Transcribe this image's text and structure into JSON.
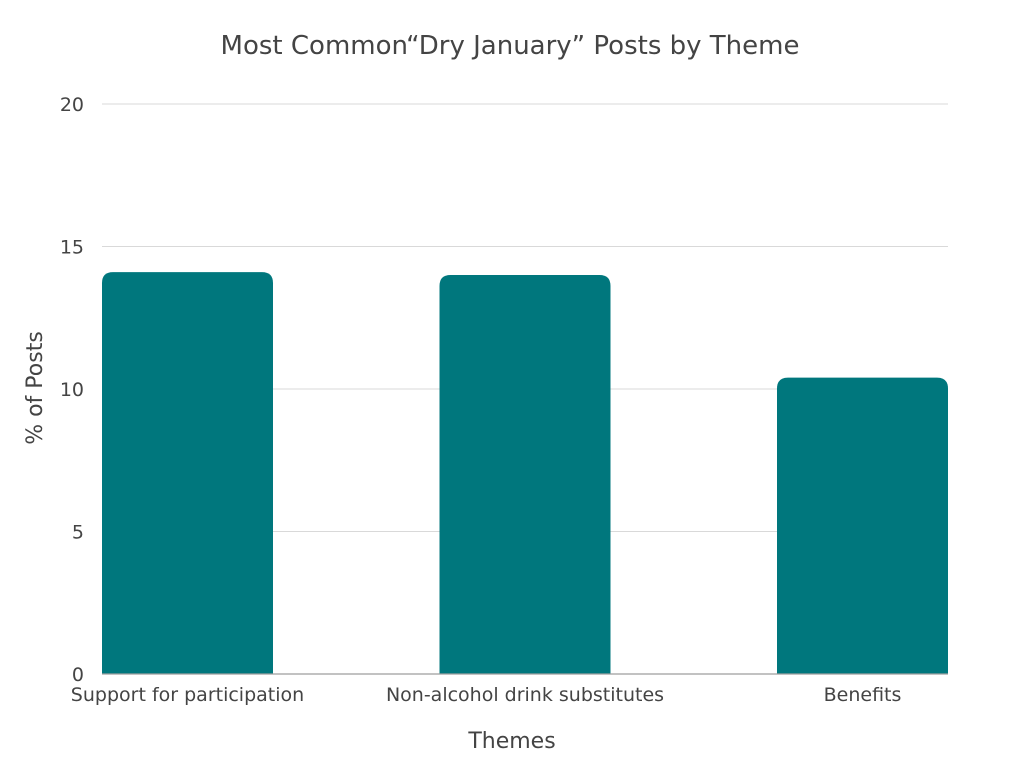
{
  "chart_data": {
    "type": "bar",
    "title": "Most Common“Dry January” Posts by Theme",
    "xlabel": "Themes",
    "ylabel": "%  of Posts",
    "categories": [
      "Support for participation",
      "Non-alcohol drink substitutes",
      "Benefits"
    ],
    "values": [
      14.1,
      14.0,
      10.4
    ],
    "ylim": [
      0,
      20
    ],
    "yticks": [
      "0",
      "5",
      "10",
      "15",
      "20"
    ],
    "grid": true,
    "legend": "none",
    "bar_color": "#00777D"
  }
}
